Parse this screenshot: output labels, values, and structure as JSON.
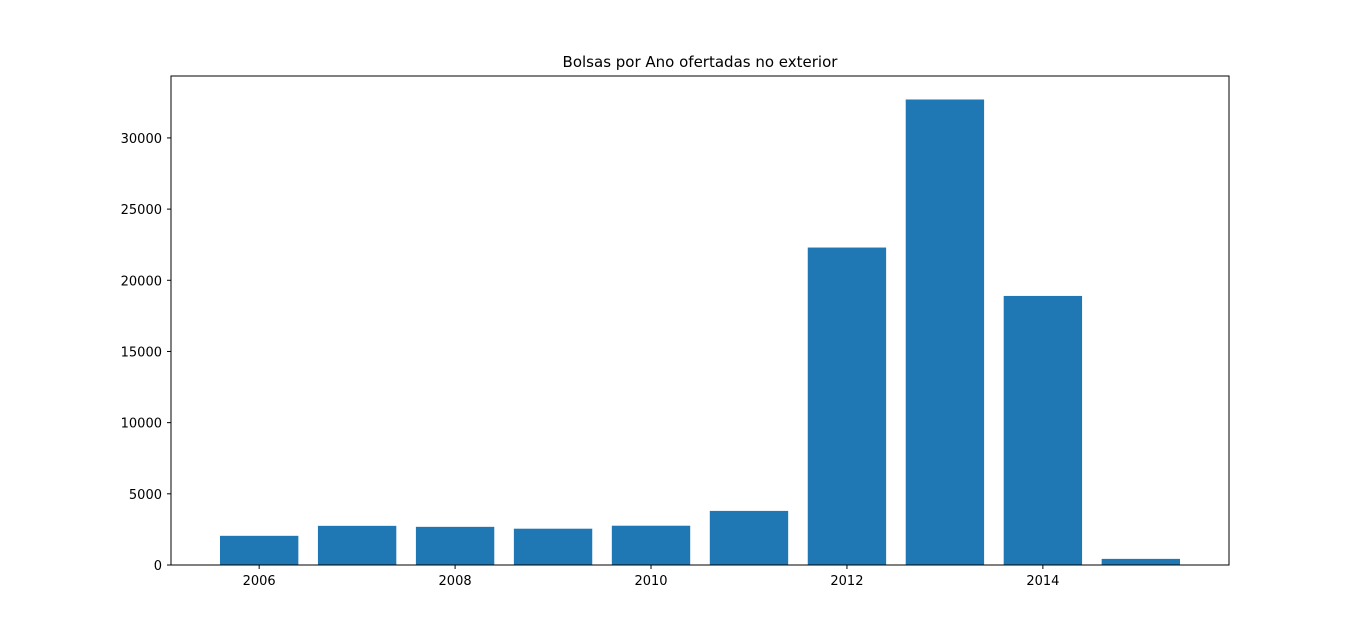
{
  "chart_data": {
    "type": "bar",
    "title": "Bolsas por Ano ofertadas no exterior",
    "xlabel": "",
    "ylabel": "",
    "x": [
      2006,
      2007,
      2008,
      2009,
      2010,
      2011,
      2012,
      2013,
      2014,
      2015
    ],
    "values": [
      2050,
      2750,
      2680,
      2550,
      2760,
      3800,
      22300,
      32700,
      18900,
      430
    ],
    "xlim": [
      2005.1,
      2015.9
    ],
    "ylim": [
      0,
      34350
    ],
    "x_ticks": [
      2006,
      2008,
      2010,
      2012,
      2014
    ],
    "x_tick_labels": [
      "2006",
      "2008",
      "2010",
      "2012",
      "2014"
    ],
    "y_ticks": [
      0,
      5000,
      10000,
      15000,
      20000,
      25000,
      30000
    ],
    "y_tick_labels": [
      "0",
      "5000",
      "10000",
      "15000",
      "20000",
      "25000",
      "30000"
    ],
    "bar_color": "#1f77b4",
    "grid": false,
    "legend": "none"
  }
}
